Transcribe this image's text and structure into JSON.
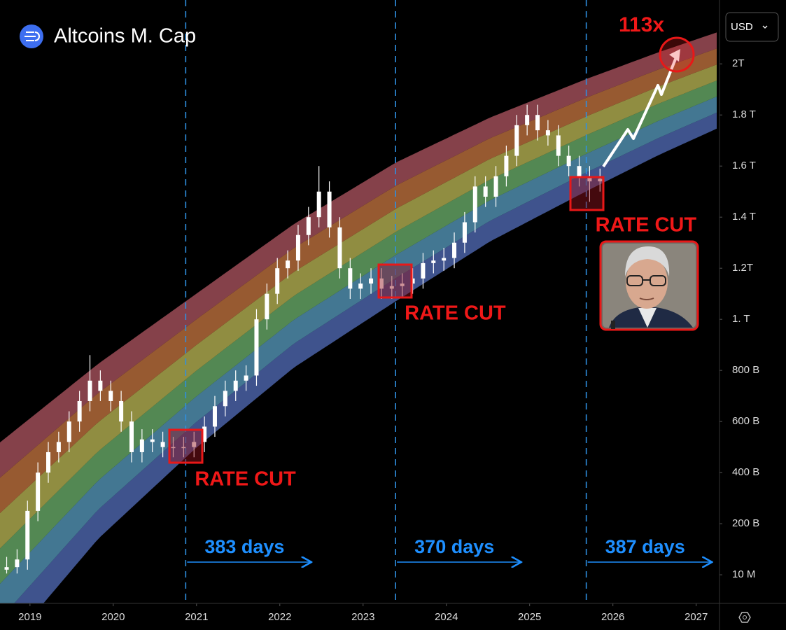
{
  "chart_data": {
    "type": "candlestick",
    "title": "Altcoins M. Cap",
    "currency": "USD",
    "color": "#ffffff",
    "x": [
      2018.72,
      2018.845,
      2018.97,
      2019.095,
      2019.22,
      2019.345,
      2019.47,
      2019.595,
      2019.72,
      2019.845,
      2019.97,
      2020.095,
      2020.22,
      2020.345,
      2020.47,
      2020.595,
      2020.72,
      2020.845,
      2020.97,
      2021.095,
      2021.22,
      2021.345,
      2021.47,
      2021.595,
      2021.72,
      2021.845,
      2021.97,
      2022.095,
      2022.22,
      2022.345,
      2022.47,
      2022.595,
      2022.72,
      2022.845,
      2022.97,
      2023.095,
      2023.22,
      2023.345,
      2023.47,
      2023.595,
      2023.72,
      2023.845,
      2023.97,
      2024.095,
      2024.22,
      2024.345,
      2024.47,
      2024.595,
      2024.72,
      2024.845,
      2024.97,
      2025.095,
      2025.22,
      2025.345,
      2025.47,
      2025.595,
      2025.72,
      2025.845
    ],
    "open": [
      20,
      30,
      60,
      250,
      400,
      480,
      520,
      600,
      680,
      760,
      720,
      680,
      600,
      480,
      530,
      520,
      500,
      500,
      500,
      520,
      580,
      660,
      720,
      760,
      780,
      1000,
      1100,
      1200,
      1230,
      1330,
      1400,
      1500,
      1360,
      1200,
      1120,
      1140,
      1160,
      1120,
      1130,
      1140,
      1160,
      1220,
      1230,
      1240,
      1300,
      1380,
      1520,
      1480,
      1560,
      1640,
      1760,
      1800,
      1740,
      1720,
      1640,
      1600,
      1560,
      1540
    ],
    "high": [
      70,
      100,
      290,
      440,
      520,
      560,
      640,
      720,
      860,
      800,
      760,
      720,
      640,
      570,
      570,
      560,
      540,
      540,
      560,
      620,
      700,
      760,
      800,
      820,
      1040,
      1140,
      1240,
      1270,
      1370,
      1440,
      1600,
      1540,
      1400,
      1240,
      1180,
      1200,
      1200,
      1170,
      1180,
      1200,
      1260,
      1270,
      1280,
      1340,
      1420,
      1560,
      1560,
      1600,
      1680,
      1800,
      1840,
      1840,
      1780,
      1760,
      1680,
      1640,
      1600,
      1590
    ],
    "low": [
      5,
      5,
      20,
      210,
      360,
      440,
      480,
      560,
      640,
      680,
      640,
      560,
      440,
      440,
      480,
      460,
      460,
      460,
      460,
      480,
      540,
      620,
      680,
      720,
      740,
      960,
      1060,
      1160,
      1190,
      1290,
      1360,
      1320,
      1160,
      1080,
      1080,
      1100,
      1080,
      1080,
      1090,
      1100,
      1120,
      1180,
      1190,
      1200,
      1260,
      1340,
      1440,
      1440,
      1520,
      1600,
      1720,
      1700,
      1680,
      1600,
      1560,
      1520,
      1460,
      1500
    ],
    "close": [
      30,
      60,
      250,
      400,
      480,
      520,
      600,
      680,
      760,
      720,
      680,
      600,
      480,
      530,
      520,
      500,
      500,
      500,
      520,
      580,
      660,
      720,
      760,
      780,
      1000,
      1100,
      1200,
      1230,
      1330,
      1400,
      1500,
      1360,
      1200,
      1120,
      1140,
      1160,
      1120,
      1130,
      1140,
      1160,
      1220,
      1230,
      1240,
      1300,
      1380,
      1520,
      1480,
      1560,
      1640,
      1760,
      1800,
      1740,
      1720,
      1640,
      1600,
      1560,
      1540,
      1550
    ],
    "xlim": [
      2018.64,
      2027.28
    ],
    "xticks": [
      2019,
      2020,
      2021,
      2022,
      2023,
      2024,
      2025,
      2026,
      2027
    ],
    "ylim": [
      -112,
      2250
    ],
    "yticks": [
      {
        "value": 2000,
        "label": "2T"
      },
      {
        "value": 1800,
        "label": "1.8 T"
      },
      {
        "value": 1600,
        "label": "1.6 T"
      },
      {
        "value": 1400,
        "label": "1.4 T"
      },
      {
        "value": 1200,
        "label": "1.2T"
      },
      {
        "value": 1000,
        "label": "1. T"
      },
      {
        "value": 800,
        "label": "800 B"
      },
      {
        "value": 600,
        "label": "600 B"
      },
      {
        "value": 400,
        "label": "400 B"
      },
      {
        "value": 200,
        "label": "200 B"
      },
      {
        "value": 0.01,
        "label": "10 M"
      }
    ],
    "events": [
      {
        "x": 2020.87,
        "label": "RATE CUT",
        "duration": "383 days"
      },
      {
        "x": 2023.39,
        "label": "RATE CUT",
        "duration": "370 days"
      },
      {
        "x": 2025.68,
        "label": "RATE CUT",
        "duration": "387 days"
      }
    ],
    "target_label": "113x"
  }
}
